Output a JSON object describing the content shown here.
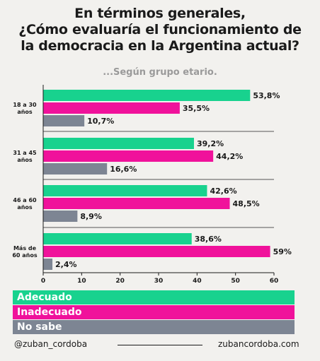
{
  "header": {
    "title_line1": "En términos generales,",
    "title_line2": "¿Cómo evaluaría el funcionamiento de",
    "title_line3": "la democracia en la Argentina actual?",
    "subtitle": "...Según grupo etario."
  },
  "colors": {
    "adecuado": "#18d28e",
    "inadecuado": "#f0129b",
    "no_sabe": "#7d8593"
  },
  "chart_data": {
    "type": "bar",
    "orientation": "horizontal",
    "categories": [
      [
        "18 a 30",
        "años"
      ],
      [
        "31 a 45",
        "años"
      ],
      [
        "46 a 60",
        "años"
      ],
      [
        "Más de",
        "60 años"
      ]
    ],
    "series": [
      {
        "name": "Adecuado",
        "values": [
          53.8,
          39.2,
          42.6,
          38.6
        ],
        "labels": [
          "53,8%",
          "39,2%",
          "42,6%",
          "38,6%"
        ]
      },
      {
        "name": "Inadecuado",
        "values": [
          35.5,
          44.2,
          48.5,
          59
        ],
        "labels": [
          "35,5%",
          "44,2%",
          "48,5%",
          "59%"
        ]
      },
      {
        "name": "No sabe",
        "values": [
          10.7,
          16.6,
          8.9,
          2.4
        ],
        "labels": [
          "10,7%",
          "16,6%",
          "8,9%",
          "2,4%"
        ]
      }
    ],
    "xlim": [
      0,
      60
    ],
    "xticks": [
      "0",
      "10",
      "20",
      "30",
      "40",
      "50",
      "60"
    ]
  },
  "legend": {
    "adecuado": "Adecuado",
    "inadecuado": "Inadecuado",
    "no_sabe": "No sabe"
  },
  "footer": {
    "left": "@zuban_cordoba",
    "right": "zubancordoba.com"
  }
}
